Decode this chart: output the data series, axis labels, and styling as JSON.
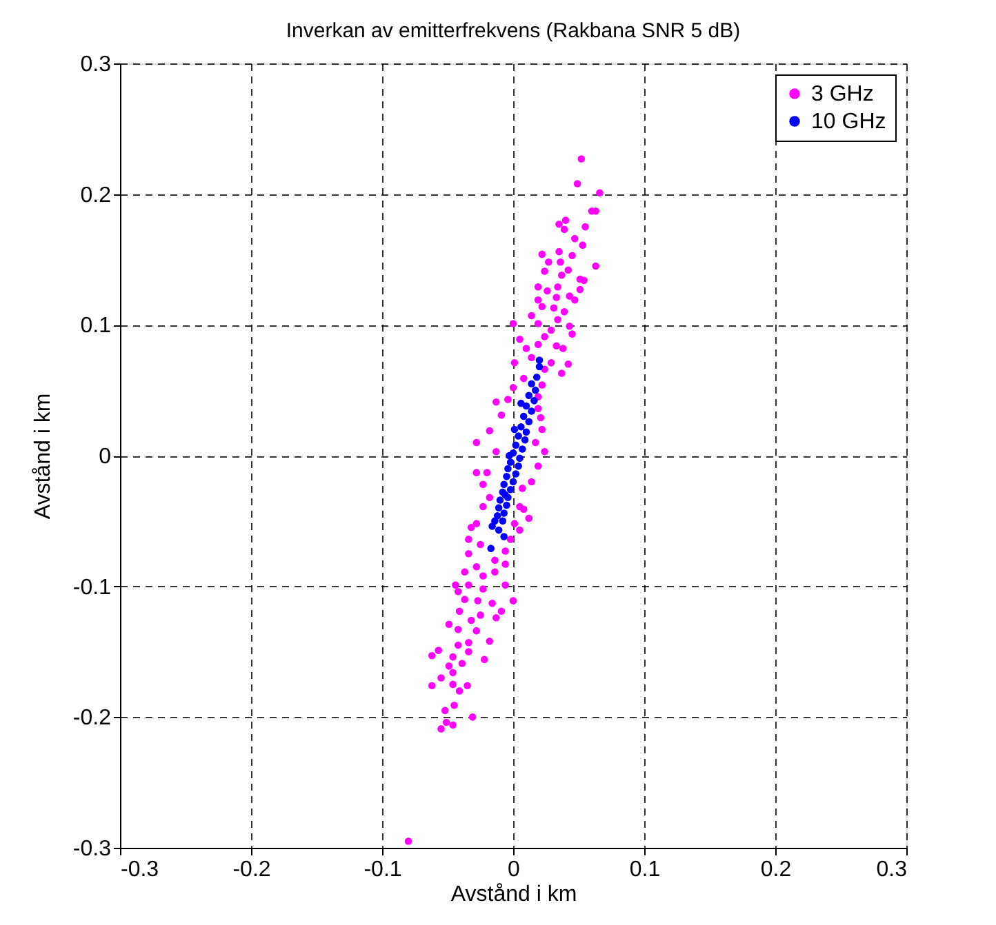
{
  "chart_data": {
    "type": "scatter",
    "title": "Inverkan av emitterfrekvens (Rakbana SNR 5 dB)",
    "xlabel": "Avstånd i km",
    "ylabel": "Avstånd i km",
    "xlim": [
      -0.3,
      0.3
    ],
    "ylim": [
      -0.3,
      0.3
    ],
    "xticks": [
      -0.3,
      -0.2,
      -0.1,
      0,
      0.1,
      0.2,
      0.3
    ],
    "yticks": [
      -0.3,
      -0.2,
      -0.1,
      0,
      0.1,
      0.2,
      0.3
    ],
    "grid": true,
    "legend": "top right",
    "marker": "circle",
    "series": [
      {
        "name": "3 GHz",
        "color": "#ff00ff",
        "x": [
          0.052,
          0.049,
          0.066,
          0.06,
          0.063,
          0.04,
          0.035,
          0.055,
          0.039,
          0.047,
          0.053,
          0.035,
          0.045,
          0.022,
          0.027,
          0.036,
          0.063,
          0.024,
          0.042,
          0.037,
          0.051,
          0.054,
          0.019,
          0.034,
          0.026,
          0.051,
          0.043,
          0.033,
          0.019,
          0.047,
          0.031,
          0.022,
          0.039,
          0.014,
          0.019,
          0.034,
          0.0,
          0.043,
          0.029,
          0.045,
          0.005,
          0.024,
          0.019,
          0.033,
          0.038,
          0.01,
          0.014,
          0.029,
          0.001,
          0.042,
          0.024,
          0.037,
          0.008,
          0.022,
          0.0,
          0.019,
          -0.013,
          -0.004,
          0.019,
          -0.009,
          0.021,
          -0.018,
          0.022,
          -0.028,
          0.017,
          -0.013,
          0.024,
          0.019,
          -0.028,
          -0.02,
          0.014,
          -0.023,
          0.007,
          -0.018,
          -0.023,
          0.005,
          0.008,
          0.012,
          -0.028,
          0.001,
          0.005,
          -0.032,
          -0.034,
          -0.002,
          -0.025,
          -0.006,
          -0.034,
          -0.014,
          -0.006,
          -0.028,
          -0.014,
          -0.037,
          -0.023,
          -0.044,
          -0.034,
          -0.006,
          -0.023,
          -0.042,
          0.0,
          -0.037,
          -0.027,
          -0.016,
          -0.041,
          -0.009,
          -0.025,
          -0.013,
          -0.032,
          -0.049,
          -0.042,
          -0.028,
          -0.034,
          -0.042,
          -0.018,
          -0.057,
          -0.062,
          -0.046,
          -0.034,
          -0.039,
          -0.049,
          -0.022,
          -0.046,
          -0.055,
          -0.046,
          -0.062,
          -0.035,
          -0.041,
          -0.045,
          -0.052,
          -0.031,
          -0.051,
          -0.046,
          -0.055,
          -0.08
        ],
        "values": [
          0.227,
          0.208,
          0.201,
          0.187,
          0.187,
          0.18,
          0.177,
          0.175,
          0.173,
          0.166,
          0.161,
          0.156,
          0.153,
          0.154,
          0.148,
          0.148,
          0.145,
          0.141,
          0.142,
          0.138,
          0.135,
          0.134,
          0.129,
          0.129,
          0.126,
          0.127,
          0.122,
          0.121,
          0.119,
          0.119,
          0.113,
          0.114,
          0.11,
          0.107,
          0.101,
          0.104,
          0.101,
          0.099,
          0.096,
          0.093,
          0.089,
          0.091,
          0.085,
          0.084,
          0.082,
          0.082,
          0.075,
          0.071,
          0.071,
          0.07,
          0.066,
          0.063,
          0.059,
          0.054,
          0.052,
          0.045,
          0.041,
          0.043,
          0.036,
          0.031,
          0.029,
          0.019,
          0.02,
          0.01,
          0.01,
          0.003,
          0.003,
          -0.008,
          -0.013,
          -0.013,
          -0.02,
          -0.022,
          -0.025,
          -0.032,
          -0.039,
          -0.039,
          -0.041,
          -0.048,
          -0.052,
          -0.052,
          -0.057,
          -0.055,
          -0.064,
          -0.064,
          -0.068,
          -0.073,
          -0.075,
          -0.08,
          -0.083,
          -0.085,
          -0.089,
          -0.089,
          -0.092,
          -0.099,
          -0.099,
          -0.099,
          -0.102,
          -0.104,
          -0.111,
          -0.11,
          -0.111,
          -0.113,
          -0.119,
          -0.119,
          -0.122,
          -0.124,
          -0.126,
          -0.129,
          -0.133,
          -0.134,
          -0.143,
          -0.145,
          -0.142,
          -0.149,
          -0.153,
          -0.154,
          -0.15,
          -0.159,
          -0.161,
          -0.156,
          -0.166,
          -0.17,
          -0.175,
          -0.176,
          -0.176,
          -0.18,
          -0.191,
          -0.195,
          -0.2,
          -0.204,
          -0.206,
          -0.209,
          -0.295
        ]
      },
      {
        "name": "10 GHz",
        "color": "#0000ff",
        "x": [
          0.02,
          0.02,
          0.018,
          0.014,
          0.017,
          0.012,
          0.016,
          0.01,
          0.014,
          0.008,
          0.012,
          0.006,
          0.01,
          0.004,
          0.009,
          0.002,
          0.007,
          0.0,
          0.005,
          -0.002,
          0.004,
          -0.004,
          0.002,
          -0.005,
          0.0,
          -0.007,
          -0.002,
          -0.008,
          -0.004,
          -0.01,
          -0.005,
          -0.011,
          -0.007,
          -0.012,
          -0.008,
          -0.016,
          -0.007,
          -0.014,
          -0.011,
          -0.017,
          -0.003,
          0.001,
          0.006,
          -0.006
        ],
        "values": [
          0.073,
          0.068,
          0.06,
          0.055,
          0.05,
          0.046,
          0.042,
          0.038,
          0.034,
          0.03,
          0.026,
          0.022,
          0.018,
          0.015,
          0.012,
          0.008,
          0.005,
          0.002,
          -0.002,
          -0.005,
          -0.008,
          -0.01,
          -0.014,
          -0.016,
          -0.02,
          -0.022,
          -0.026,
          -0.028,
          -0.032,
          -0.034,
          -0.038,
          -0.04,
          -0.044,
          -0.046,
          -0.05,
          -0.054,
          -0.062,
          -0.05,
          -0.057,
          -0.071,
          0.0,
          0.02,
          0.04,
          -0.03
        ]
      }
    ]
  }
}
